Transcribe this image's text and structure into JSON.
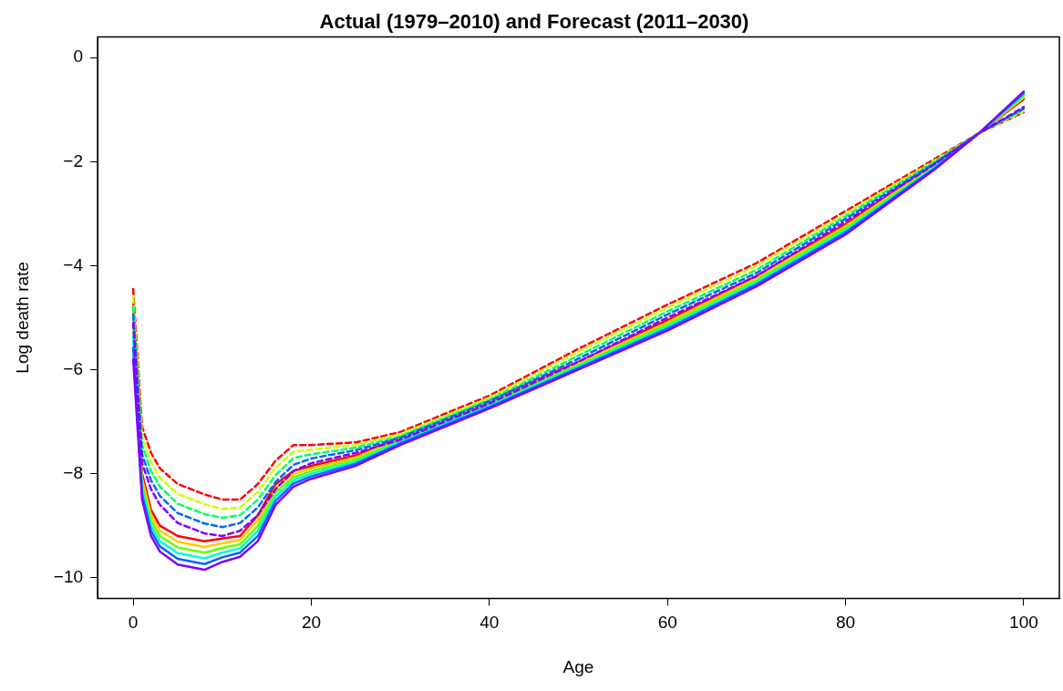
{
  "chart_data": {
    "type": "line",
    "title": "Actual (1979–2010) and Forecast (2011–2030)",
    "xlabel": "Age",
    "ylabel": "Log death rate",
    "x": [
      0,
      1,
      2,
      3,
      5,
      8,
      10,
      12,
      14,
      16,
      18,
      20,
      25,
      30,
      40,
      50,
      60,
      70,
      80,
      90,
      95,
      100
    ],
    "xlim": [
      -4,
      104
    ],
    "xticks": [
      0,
      20,
      40,
      60,
      80,
      100
    ],
    "ylim": [
      -10.4,
      0.4
    ],
    "yticks": [
      -10,
      -8,
      -6,
      -4,
      -2,
      0
    ],
    "grid": false,
    "legend": false,
    "marker": "none",
    "series": [
      {
        "color": "#ff0000",
        "line_style": "solid",
        "values": [
          -4.7,
          -8.0,
          -8.7,
          -9.0,
          -9.2,
          -9.3,
          -9.25,
          -9.2,
          -8.8,
          -8.2,
          -7.95,
          -7.85,
          -7.65,
          -7.3,
          -6.6,
          -5.85,
          -5.05,
          -4.2,
          -3.2,
          -2.05,
          -1.45,
          -0.8
        ]
      },
      {
        "color": "#ffcc00",
        "line_style": "solid",
        "values": [
          -4.92,
          -8.1,
          -8.8,
          -9.1,
          -9.31,
          -9.41,
          -9.34,
          -9.28,
          -8.9,
          -8.28,
          -8.01,
          -7.9,
          -7.69,
          -7.33,
          -6.63,
          -5.88,
          -5.09,
          -4.24,
          -3.24,
          -2.07,
          -1.45,
          -0.77
        ]
      },
      {
        "color": "#66ff00",
        "line_style": "solid",
        "values": [
          -5.14,
          -8.2,
          -8.9,
          -9.2,
          -9.42,
          -9.52,
          -9.43,
          -9.36,
          -9.0,
          -8.36,
          -8.07,
          -7.95,
          -7.73,
          -7.36,
          -6.66,
          -5.91,
          -5.13,
          -4.28,
          -3.28,
          -2.09,
          -1.45,
          -0.74
        ]
      },
      {
        "color": "#00ffcc",
        "line_style": "solid",
        "values": [
          -5.36,
          -8.3,
          -9.0,
          -9.3,
          -9.53,
          -9.63,
          -9.52,
          -9.44,
          -9.1,
          -8.44,
          -8.13,
          -8.0,
          -7.77,
          -7.39,
          -6.69,
          -5.94,
          -5.17,
          -4.32,
          -3.32,
          -2.11,
          -1.45,
          -0.71
        ]
      },
      {
        "color": "#0066ff",
        "line_style": "solid",
        "values": [
          -5.58,
          -8.4,
          -9.1,
          -9.4,
          -9.64,
          -9.74,
          -9.61,
          -9.52,
          -9.2,
          -8.52,
          -8.19,
          -8.05,
          -7.81,
          -7.42,
          -6.72,
          -5.97,
          -5.21,
          -4.36,
          -3.36,
          -2.13,
          -1.45,
          -0.68
        ]
      },
      {
        "color": "#8000ff",
        "line_style": "solid",
        "values": [
          -5.8,
          -8.5,
          -9.2,
          -9.5,
          -9.75,
          -9.85,
          -9.7,
          -9.6,
          -9.3,
          -8.6,
          -8.25,
          -8.1,
          -7.85,
          -7.45,
          -6.75,
          -6.0,
          -5.25,
          -4.4,
          -3.4,
          -2.15,
          -1.45,
          -0.65
        ]
      },
      {
        "color": "#ff0000",
        "line_style": "dashed",
        "values": [
          -4.45,
          -7.1,
          -7.6,
          -7.9,
          -8.2,
          -8.4,
          -8.5,
          -8.5,
          -8.2,
          -7.75,
          -7.45,
          -7.45,
          -7.4,
          -7.2,
          -6.5,
          -5.6,
          -4.75,
          -3.95,
          -2.95,
          -1.95,
          -1.45,
          -1.05
        ]
      },
      {
        "color": "#ccff00",
        "line_style": "dashed",
        "values": [
          -4.61,
          -7.28,
          -7.78,
          -8.08,
          -8.39,
          -8.59,
          -8.68,
          -8.65,
          -8.35,
          -7.89,
          -7.58,
          -7.54,
          -7.45,
          -7.24,
          -6.54,
          -5.66,
          -4.81,
          -4.01,
          -3.0,
          -1.98,
          -1.45,
          -1.03
        ]
      },
      {
        "color": "#00ff66",
        "line_style": "dashed",
        "values": [
          -4.78,
          -7.45,
          -7.95,
          -8.25,
          -8.58,
          -8.78,
          -8.85,
          -8.8,
          -8.5,
          -8.03,
          -7.7,
          -7.63,
          -7.5,
          -7.28,
          -6.58,
          -5.73,
          -4.88,
          -4.08,
          -3.05,
          -2.0,
          -1.45,
          -1.0
        ]
      },
      {
        "color": "#0066ff",
        "line_style": "dashed",
        "values": [
          -4.94,
          -7.63,
          -8.13,
          -8.43,
          -8.76,
          -8.96,
          -9.03,
          -8.95,
          -8.65,
          -8.16,
          -7.83,
          -7.71,
          -7.55,
          -7.31,
          -6.61,
          -5.79,
          -4.94,
          -4.14,
          -3.1,
          -2.03,
          -1.45,
          -0.98
        ]
      },
      {
        "color": "#8000ff",
        "line_style": "dashed",
        "values": [
          -5.1,
          -7.8,
          -8.3,
          -8.6,
          -8.95,
          -9.15,
          -9.2,
          -9.1,
          -8.8,
          -8.3,
          -7.95,
          -7.8,
          -7.6,
          -7.35,
          -6.65,
          -5.85,
          -5.0,
          -4.2,
          -3.15,
          -2.05,
          -1.45,
          -0.95
        ]
      }
    ]
  }
}
